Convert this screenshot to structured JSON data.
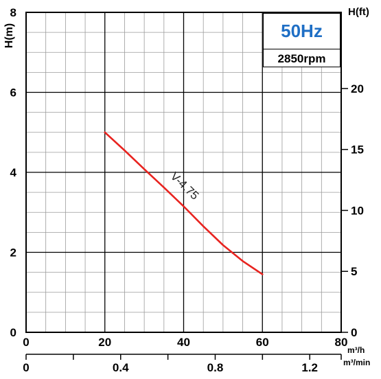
{
  "chart_data": {
    "type": "line",
    "header": {
      "frequency": "50Hz",
      "speed": "2850rpm"
    },
    "x_axis": {
      "label": "m³/h",
      "lim": [
        0,
        80
      ],
      "ticks": [
        0,
        20,
        40,
        60,
        80
      ],
      "tick_labels": [
        "0",
        "20",
        "40",
        "60",
        "80"
      ]
    },
    "x2_axis": {
      "label": "m³/min",
      "lim": [
        0,
        1.333
      ],
      "ticks": [
        0,
        0.4,
        0.8,
        1.2
      ],
      "tick_labels": [
        "0",
        "0.4",
        "0.8",
        "1.2"
      ]
    },
    "y_axis": {
      "label": "H(m)",
      "lim": [
        0,
        8
      ],
      "ticks": [
        0,
        2,
        4,
        6,
        8
      ],
      "tick_labels": [
        "0",
        "2",
        "4",
        "6",
        "8"
      ]
    },
    "y2_axis": {
      "label": "H(ft)",
      "ticks": [
        0,
        5,
        10,
        15,
        20
      ],
      "tick_labels": [
        "0",
        "5",
        "10",
        "15",
        "20"
      ],
      "m_per_unit": 0.3048
    },
    "grid": true,
    "series": [
      {
        "name": "V-4.75",
        "color": "#e8231f",
        "x": [
          20,
          25,
          30,
          35,
          40,
          45,
          50,
          55,
          60
        ],
        "y": [
          5.0,
          4.55,
          4.08,
          3.62,
          3.15,
          2.65,
          2.18,
          1.78,
          1.45
        ]
      }
    ]
  }
}
